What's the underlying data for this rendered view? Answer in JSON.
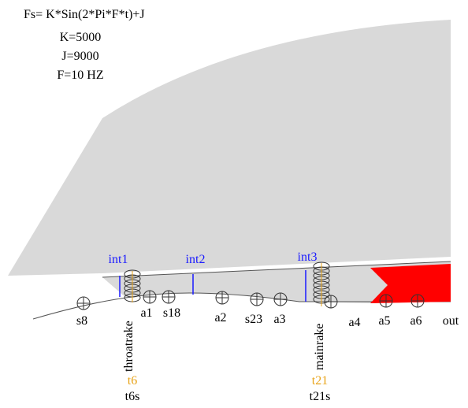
{
  "formula": {
    "equation": "Fs= K*Sin(2*Pi*F*t)+J",
    "params": [
      "K=5000",
      "J=9000",
      "F=10 HZ"
    ]
  },
  "interfaces": [
    "int1",
    "int2",
    "int3"
  ],
  "stations": [
    "s8",
    "a1",
    "s18",
    "a2",
    "s23",
    "a3",
    "a4",
    "a5",
    "a6",
    "out"
  ],
  "rakes": [
    {
      "name": "throatrake",
      "probe": "t6",
      "static": "t6s"
    },
    {
      "name": "mainrake",
      "probe": "t21",
      "static": "t21s"
    }
  ]
}
